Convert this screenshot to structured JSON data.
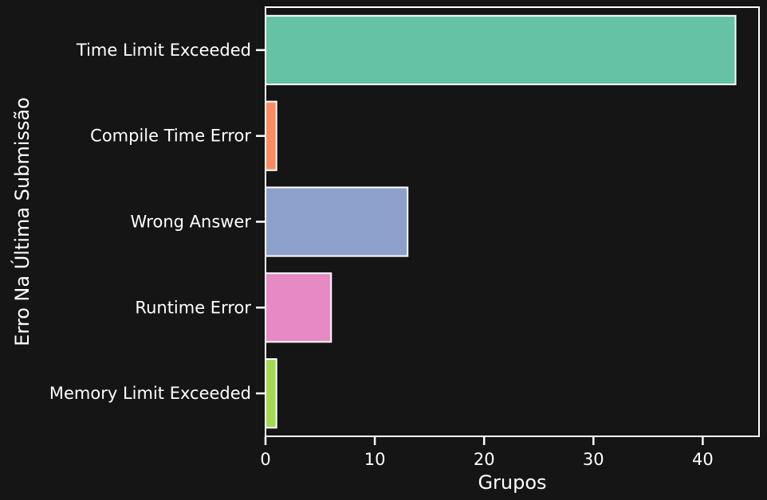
{
  "chart_data": {
    "type": "bar",
    "orientation": "horizontal",
    "categories": [
      "Time Limit Exceeded",
      "Compile Time Error",
      "Wrong Answer",
      "Runtime Error",
      "Memory Limit Exceeded"
    ],
    "values": [
      43,
      1,
      13,
      6,
      1
    ],
    "colors": [
      "#66c2a5",
      "#fc8d62",
      "#8da0cb",
      "#e78ac3",
      "#a6d854"
    ],
    "xlabel": "Grupos",
    "ylabel": "Erro Na Última Submissão",
    "xlim": [
      0,
      45.15
    ],
    "xticks": [
      0,
      10,
      20,
      30,
      40
    ],
    "grid": false,
    "background": "#151515",
    "foreground": "#ffffff"
  }
}
